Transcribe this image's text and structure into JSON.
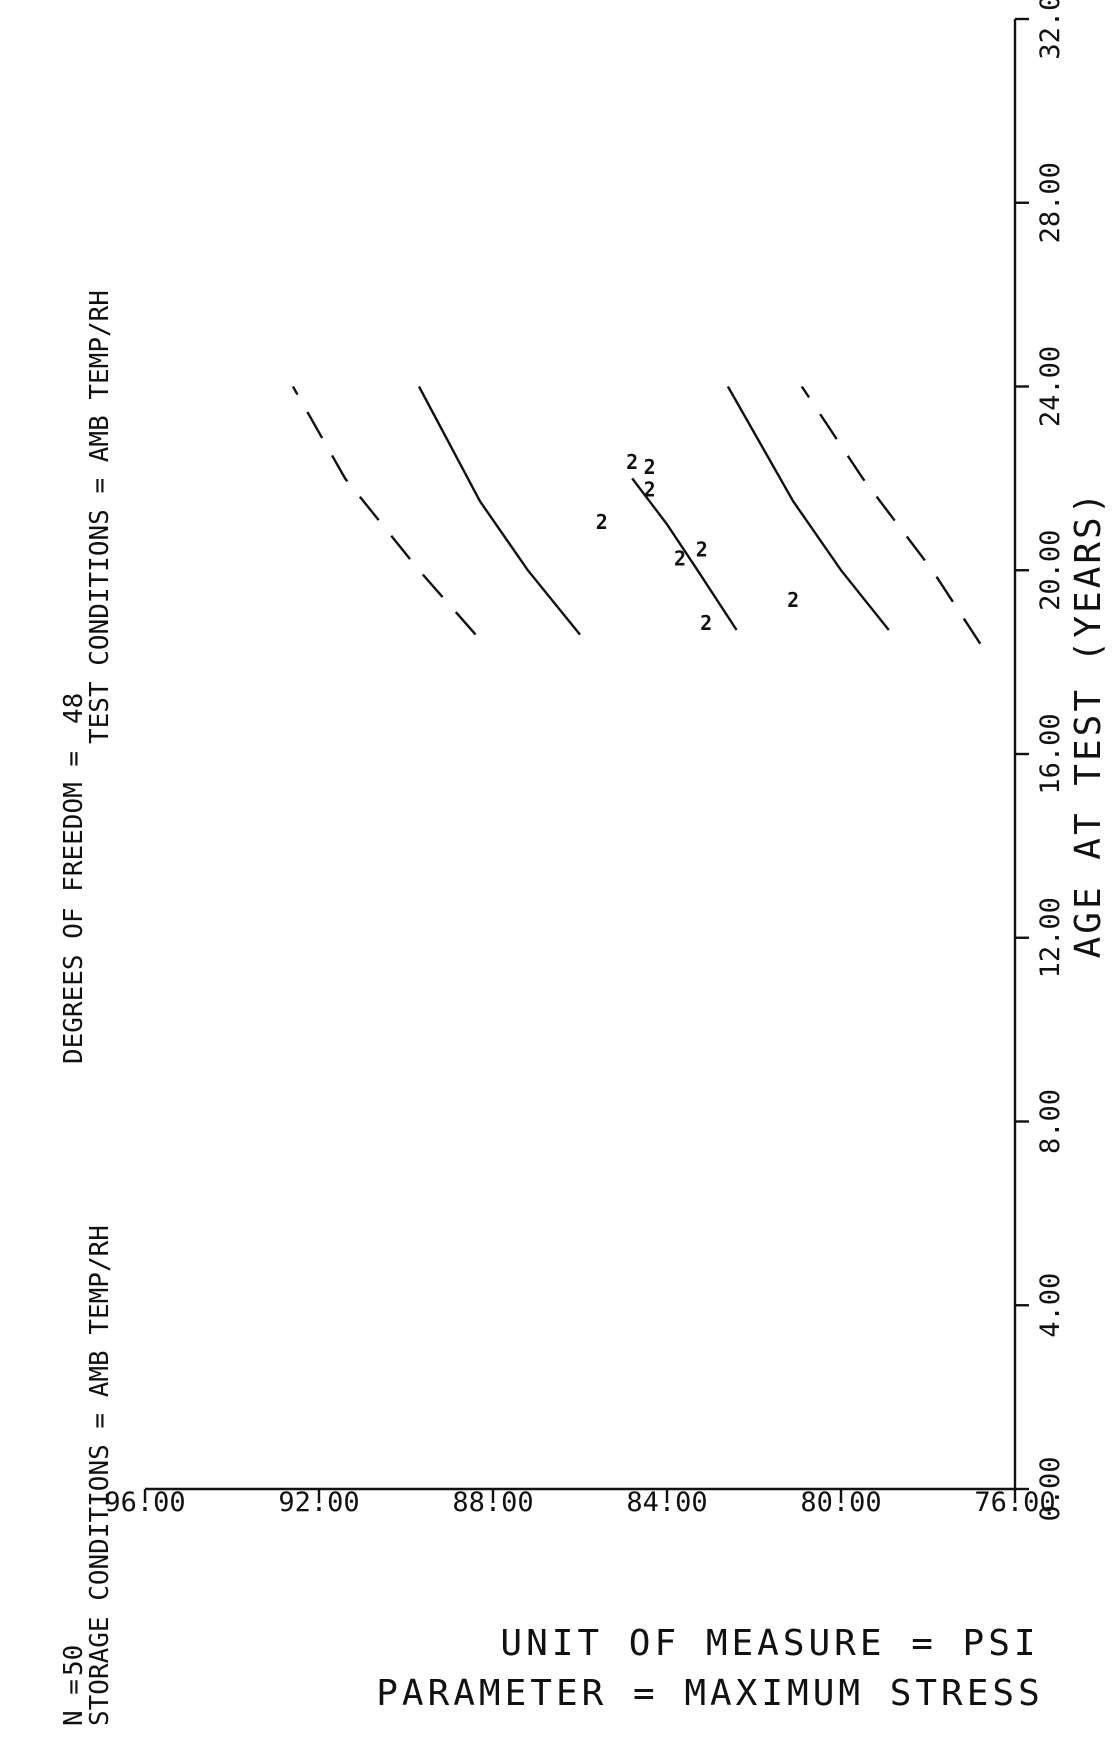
{
  "header": {
    "line1_n": "N =",
    "line1_value": "50",
    "dof_label": "DEGREES OF FREEDOM =",
    "dof_value": "48",
    "storage_conditions": "STORAGE CONDITIONS = AMB TEMP/RH",
    "test_conditions": "TEST CONDITIONS = AMB TEMP/RH"
  },
  "y_axis_titles": {
    "parameter": "PARAMETER  =  MAXIMUM STRESS",
    "unit": "UNIT OF MEASURE  =  PSI"
  },
  "chart_data": {
    "type": "line",
    "xlabel": "AGE AT TEST  (YEARS)",
    "ylabel": "",
    "xlim": [
      0,
      32
    ],
    "ylim": [
      76,
      96
    ],
    "x_ticks": [
      0,
      4,
      8,
      12,
      16,
      20,
      24,
      28,
      32
    ],
    "x_tick_labels": [
      "0.00",
      "4.00",
      "8.00",
      "12.00",
      "16.00",
      "20.00",
      "24.00",
      "28.00",
      "32.00"
    ],
    "y_ticks": [
      76,
      80,
      84,
      88,
      92,
      96
    ],
    "y_tick_labels": [
      "76.00",
      "80.00",
      "84.00",
      "88.00",
      "92.00",
      "96.00"
    ],
    "grid": false,
    "series": [
      {
        "style": "solid",
        "x": [
          18.7,
          20,
          21,
          22
        ],
        "y": [
          82.4,
          83.3,
          84.0,
          84.8
        ]
      },
      {
        "style": "solid",
        "x": [
          18.6,
          20,
          21.5,
          24
        ],
        "y": [
          86.0,
          87.2,
          88.3,
          89.7
        ]
      },
      {
        "style": "solid",
        "x": [
          18.7,
          20,
          21.5,
          24
        ],
        "y": [
          78.9,
          80.0,
          81.1,
          82.6
        ]
      },
      {
        "style": "dashed",
        "x": [
          18.6,
          20,
          22,
          24
        ],
        "y": [
          88.4,
          89.7,
          91.4,
          92.6
        ]
      },
      {
        "style": "dashed",
        "x": [
          18.4,
          20,
          22,
          24
        ],
        "y": [
          76.8,
          77.9,
          79.5,
          80.9
        ]
      }
    ],
    "points": [
      {
        "x": 18.7,
        "y": 83.1,
        "label": "2"
      },
      {
        "x": 19.2,
        "y": 81.1,
        "label": "2"
      },
      {
        "x": 20.1,
        "y": 83.7,
        "label": "2"
      },
      {
        "x": 20.3,
        "y": 83.2,
        "label": "2"
      },
      {
        "x": 20.9,
        "y": 85.5,
        "label": "2"
      },
      {
        "x": 21.6,
        "y": 84.4,
        "label": "2"
      },
      {
        "x": 22.1,
        "y": 84.4,
        "label": "2"
      },
      {
        "x": 22.2,
        "y": 84.8,
        "label": "2"
      }
    ]
  }
}
